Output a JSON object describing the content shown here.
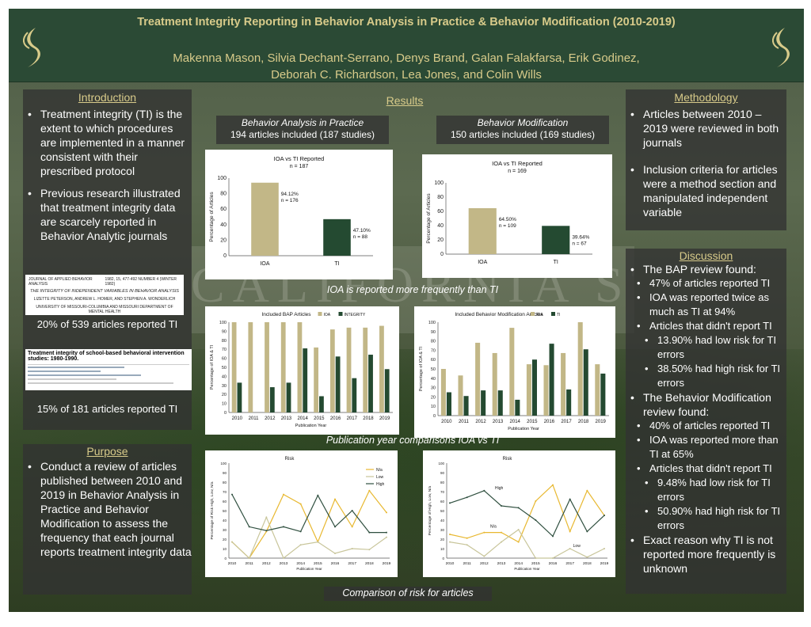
{
  "title": "Treatment Integrity Reporting in Behavior Analysis in Practice & Behavior Modification (2010-2019)",
  "authors_line1": "Makenna Mason, Silvia Dechant-Serrano, Denys Brand, Galan Falakfarsa, Erik Godinez,",
  "authors_line2": "Deborah C. Richardson, Lea Jones, and Colin Wills",
  "background_text": "CALIFORNIA STATE UNIVERSITY",
  "introduction": {
    "title": "Introduction",
    "bullets": [
      "Treatment integrity (TI) is the extent to which procedures are implemented in a manner consistent with their prescribed protocol",
      "Previous research illustrated that treatment integrity data are scarcely reported in Behavior Analytic journals"
    ],
    "thumb1": {
      "journal": "JOURNAL OF APPLIED BEHAVIOR ANALYSIS",
      "issue": "1982, 15, 477-492 NUMBER 4 (WINTER 1982)",
      "heading": "THE INTEGRITY OF INDEPENDENT VARIABLES IN BEHAVIOR ANALYSIS",
      "authors": "LIZETTE PETERSON, ANDREW L. HOMER, AND STEPHEN A. WONDERLICH",
      "affil": "UNIVERSITY OF MISSOURI-COLUMBIA AND MISSOURI DEPARTMENT OF MENTAL HEALTH"
    },
    "stat1": "20% of 539 articles reported TI",
    "thumb2": {
      "heading": "Treatment integrity of school-based behavioral intervention studies: 1980-1990."
    },
    "stat2": "15% of 181 articles reported TI"
  },
  "purpose": {
    "title": "Purpose",
    "bullets": [
      "Conduct a review of articles published between 2010 and 2019 in Behavior Analysis in Practice and Behavior Modification to assess the frequency that each journal reports treatment integrity data"
    ]
  },
  "results": {
    "title": "Results",
    "bap_journal": "Behavior Analysis in Practice",
    "bap_included": "194 articles included (187 studies)",
    "bm_journal": "Behavior Modification",
    "bm_included": "150 articles included (169 studies)",
    "caption1": "IOA is reported more frequently than TI",
    "caption2": "Publication year comparisons IOA vs TI",
    "caption3": "Comparison of risk for articles"
  },
  "methodology": {
    "title": "Methodology",
    "bullets": [
      "Articles between 2010 – 2019 were reviewed in both journals",
      "Inclusion criteria for articles were a method section and manipulated independent variable"
    ]
  },
  "discussion": {
    "title": "Discussion",
    "bap_intro": "The BAP review found:",
    "bap_points": [
      "47% of articles reported TI",
      "IOA was reported twice as much as TI at 94%",
      "Articles that didn't report TI"
    ],
    "bap_sub": [
      "13.90% had low risk for TI errors",
      "38.50% had high risk for TI errors"
    ],
    "bm_intro": "The Behavior Modification review found:",
    "bm_points": [
      "40% of articles reported TI",
      "IOA was reported more than TI at 65%",
      "Articles that didn't report TI"
    ],
    "bm_sub": [
      "9.48% had low risk for TI errors",
      "50.90% had high risk for TI errors"
    ],
    "closing": "Exact reason why TI is not reported more frequently is unknown"
  },
  "colors": {
    "header": "#2b4a35",
    "gold": "#d8cb8a",
    "tan_bar": "#c2b787",
    "green_bar": "#244a31",
    "ns_line": "#e8b830",
    "low_line": "#c8c59a",
    "high_line": "#2f4f3f"
  },
  "chart_data": [
    {
      "type": "bar",
      "title": "IOA vs TI Reported",
      "subtitle": "n = 187",
      "ylabel": "Percentage of Articles",
      "ylim": [
        0,
        100
      ],
      "yticks": [
        "100",
        "80",
        "60",
        "40",
        "20",
        "0"
      ],
      "categories": [
        "IOA",
        "TI"
      ],
      "values": [
        94.12,
        47.1
      ],
      "labels": [
        "94.12%",
        "47.10%"
      ],
      "n_labels": [
        "n = 176",
        "n = 88"
      ]
    },
    {
      "type": "bar",
      "title": "IOA vs TI Reported",
      "subtitle": "n = 169",
      "ylabel": "Percentage of Articles",
      "ylim": [
        0,
        100
      ],
      "yticks": [
        "100",
        "80",
        "60",
        "40",
        "20",
        "0"
      ],
      "categories": [
        "IOA",
        "TI"
      ],
      "values": [
        64.5,
        39.64
      ],
      "labels": [
        "64.50%",
        "39.64%"
      ],
      "n_labels": [
        "n = 109",
        "n = 67"
      ]
    },
    {
      "type": "bar",
      "title": "Included BAP Articles",
      "xlabel": "Publication Year",
      "ylabel": "Percentage of IOA & TI",
      "ylim": [
        0,
        100
      ],
      "yticks": [
        "100",
        "90",
        "80",
        "70",
        "60",
        "50",
        "40",
        "30",
        "20",
        "10",
        "0"
      ],
      "legend": [
        "IOA",
        "INTEGRITY"
      ],
      "categories": [
        "2010",
        "2011",
        "2012",
        "2013",
        "2014",
        "2015",
        "2016",
        "2017",
        "2018",
        "2019"
      ],
      "series": [
        {
          "name": "IOA",
          "values": [
            100,
            100,
            100,
            100,
            100,
            72,
            92,
            94,
            94,
            96
          ]
        },
        {
          "name": "INTEGRITY",
          "values": [
            33,
            0,
            28,
            33,
            71,
            18,
            62,
            38,
            64,
            48
          ]
        }
      ]
    },
    {
      "type": "bar",
      "title": "Included Behavior Modification Articles",
      "xlabel": "Publication Year",
      "ylabel": "Percentage of IOA & TI",
      "ylim": [
        0,
        100
      ],
      "yticks": [
        "100",
        "90",
        "80",
        "70",
        "60",
        "50",
        "40",
        "30",
        "20",
        "10",
        "0"
      ],
      "legend": [
        "IOA",
        "TI"
      ],
      "categories": [
        "2010",
        "2011",
        "2012",
        "2013",
        "2014",
        "2015",
        "2016",
        "2017",
        "2018",
        "2019"
      ],
      "series": [
        {
          "name": "IOA",
          "values": [
            50,
            43,
            78,
            67,
            94,
            55,
            54,
            67,
            100,
            55
          ]
        },
        {
          "name": "TI",
          "values": [
            25,
            21,
            27,
            27,
            17,
            60,
            77,
            28,
            71,
            45
          ]
        }
      ]
    },
    {
      "type": "line",
      "title": "Risk",
      "xlabel": "Publication Year",
      "ylabel": "Percentage of Risk High, Low, N/a",
      "ylim": [
        0,
        100
      ],
      "yticks": [
        "100",
        "90",
        "80",
        "70",
        "60",
        "50",
        "40",
        "30",
        "20",
        "10",
        "0"
      ],
      "legend": [
        "N/a",
        "Low",
        "High"
      ],
      "x": [
        "2010",
        "2011",
        "2012",
        "2013",
        "2014",
        "2015",
        "2016",
        "2017",
        "2018",
        "2019"
      ],
      "series": [
        {
          "name": "N/a",
          "values": [
            17,
            0,
            28,
            67,
            57,
            17,
            62,
            33,
            71,
            48
          ]
        },
        {
          "name": "Low",
          "values": [
            17,
            0,
            43,
            0,
            14,
            17,
            5,
            10,
            9,
            22
          ]
        },
        {
          "name": "High",
          "values": [
            67,
            33,
            29,
            33,
            28,
            66,
            33,
            50,
            27,
            27
          ]
        }
      ]
    },
    {
      "type": "line",
      "title": "Risk",
      "xlabel": "Publication Year",
      "ylabel": "Percentage of High, Low, N/a",
      "ylim": [
        0,
        100
      ],
      "yticks": [
        "100",
        "90",
        "80",
        "70",
        "60",
        "50",
        "40",
        "30",
        "20",
        "10",
        "0"
      ],
      "labels": [
        "High",
        "N/a",
        "Low"
      ],
      "x": [
        "2010",
        "2011",
        "2012",
        "2013",
        "2014",
        "2015",
        "2016",
        "2017",
        "2018",
        "2019"
      ],
      "series": [
        {
          "name": "N/a",
          "values": [
            25,
            21,
            27,
            27,
            17,
            60,
            77,
            28,
            71,
            45
          ]
        },
        {
          "name": "Low",
          "values": [
            17,
            14,
            2,
            17,
            30,
            0,
            0,
            10,
            1,
            10
          ]
        },
        {
          "name": "High",
          "values": [
            58,
            64,
            71,
            55,
            53,
            40,
            23,
            62,
            28,
            45
          ]
        }
      ]
    }
  ]
}
